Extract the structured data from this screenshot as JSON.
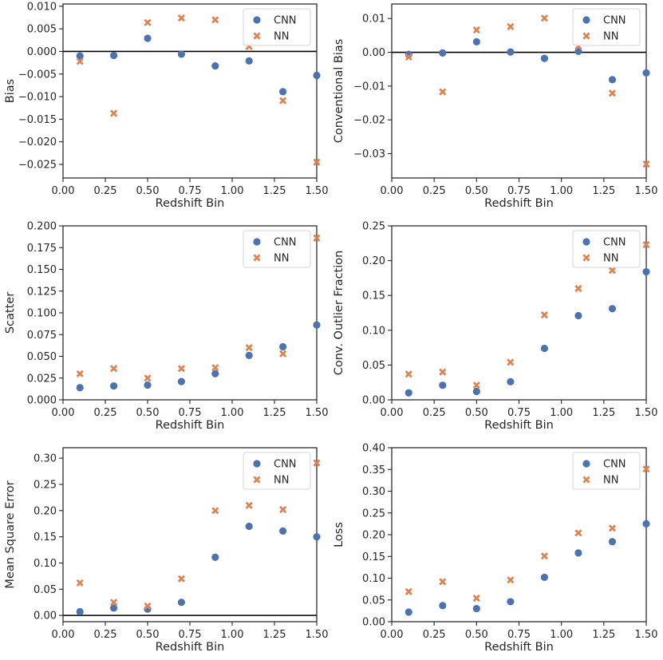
{
  "figure": {
    "x_axis_label": "Redshift Bin",
    "x_ticks": [
      "0.00",
      "0.25",
      "0.50",
      "0.75",
      "1.00",
      "1.25",
      "1.50"
    ],
    "legend": [
      "CNN",
      "NN"
    ],
    "colors": {
      "CNN": "#4c72b0",
      "NN": "#dd8452",
      "axis": "#262626",
      "zero_line": "#000000"
    },
    "markers": {
      "CNN": "circle",
      "NN": "x"
    }
  },
  "chart_data": [
    {
      "type": "scatter",
      "id": "bias",
      "title": "",
      "xlabel": "Redshift Bin",
      "ylabel": "Bias",
      "xlim": [
        0.0,
        1.5
      ],
      "ylim": [
        -0.028,
        0.0105
      ],
      "yticks": [
        -0.025,
        -0.02,
        -0.015,
        -0.01,
        -0.005,
        0.0,
        0.005,
        0.01
      ],
      "ytick_labels": [
        "−0.025",
        "−0.020",
        "−0.015",
        "−0.010",
        "−0.005",
        "0.000",
        "0.005",
        "0.010"
      ],
      "zero_line": true,
      "x": [
        0.1,
        0.3,
        0.5,
        0.7,
        0.9,
        1.1,
        1.3,
        1.5
      ],
      "series": [
        {
          "name": "CNN",
          "values": [
            -0.001,
            -0.0009,
            0.0029,
            -0.0006,
            -0.0032,
            -0.0021,
            -0.0089,
            -0.0053
          ]
        },
        {
          "name": "NN",
          "values": [
            -0.0022,
            -0.0137,
            0.0064,
            0.0074,
            0.007,
            0.0011,
            -0.0109,
            -0.0245
          ]
        }
      ]
    },
    {
      "type": "scatter",
      "id": "conventional-bias",
      "title": "",
      "xlabel": "Redshift Bin",
      "ylabel": "Conventional Bias",
      "xlim": [
        0.0,
        1.5
      ],
      "ylim": [
        -0.0372,
        0.0143
      ],
      "yticks": [
        -0.03,
        -0.02,
        -0.01,
        0.0,
        0.01
      ],
      "ytick_labels": [
        "−0.03",
        "−0.02",
        "−0.01",
        "0.00",
        "0.01"
      ],
      "zero_line": true,
      "x": [
        0.1,
        0.3,
        0.5,
        0.7,
        0.9,
        1.1,
        1.3,
        1.5
      ],
      "series": [
        {
          "name": "CNN",
          "values": [
            -0.0006,
            -0.0002,
            0.0031,
            0.0001,
            -0.0018,
            0.0003,
            -0.0081,
            -0.0061
          ]
        },
        {
          "name": "NN",
          "values": [
            -0.0014,
            -0.0117,
            0.0066,
            0.0076,
            0.0101,
            0.0018,
            -0.0121,
            -0.0331
          ]
        }
      ]
    },
    {
      "type": "scatter",
      "id": "scatter",
      "title": "",
      "xlabel": "Redshift Bin",
      "ylabel": "Scatter",
      "xlim": [
        0.0,
        1.5
      ],
      "ylim": [
        0.0,
        0.2
      ],
      "yticks": [
        0.0,
        0.025,
        0.05,
        0.075,
        0.1,
        0.125,
        0.15,
        0.175,
        0.2
      ],
      "ytick_labels": [
        "0.000",
        "0.025",
        "0.050",
        "0.075",
        "0.100",
        "0.125",
        "0.150",
        "0.175",
        "0.200"
      ],
      "zero_line": false,
      "x": [
        0.1,
        0.3,
        0.5,
        0.7,
        0.9,
        1.1,
        1.3,
        1.5
      ],
      "series": [
        {
          "name": "CNN",
          "values": [
            0.014,
            0.016,
            0.017,
            0.021,
            0.03,
            0.051,
            0.061,
            0.086
          ]
        },
        {
          "name": "NN",
          "values": [
            0.03,
            0.036,
            0.025,
            0.036,
            0.037,
            0.06,
            0.053,
            0.186
          ]
        }
      ]
    },
    {
      "type": "scatter",
      "id": "conv-outlier-fraction",
      "title": "",
      "xlabel": "Redshift Bin",
      "ylabel": "Conv. Outlier Fraction",
      "xlim": [
        0.0,
        1.5
      ],
      "ylim": [
        0.0,
        0.25
      ],
      "yticks": [
        0.0,
        0.05,
        0.1,
        0.15,
        0.2,
        0.25
      ],
      "ytick_labels": [
        "0.00",
        "0.05",
        "0.10",
        "0.15",
        "0.20",
        "0.25"
      ],
      "zero_line": false,
      "x": [
        0.1,
        0.3,
        0.5,
        0.7,
        0.9,
        1.1,
        1.3,
        1.5
      ],
      "series": [
        {
          "name": "CNN",
          "values": [
            0.01,
            0.021,
            0.012,
            0.026,
            0.074,
            0.121,
            0.131,
            0.184
          ]
        },
        {
          "name": "NN",
          "values": [
            0.037,
            0.04,
            0.021,
            0.054,
            0.122,
            0.16,
            0.186,
            0.223
          ]
        }
      ]
    },
    {
      "type": "scatter",
      "id": "mean-square-error",
      "title": "",
      "xlabel": "Redshift Bin",
      "ylabel": "Mean Square Error",
      "xlim": [
        0.0,
        1.5
      ],
      "ylim": [
        -0.012,
        0.32
      ],
      "yticks": [
        0.0,
        0.05,
        0.1,
        0.15,
        0.2,
        0.25,
        0.3
      ],
      "ytick_labels": [
        "0.00",
        "0.05",
        "0.10",
        "0.15",
        "0.20",
        "0.25",
        "0.30"
      ],
      "zero_line": true,
      "x": [
        0.1,
        0.3,
        0.5,
        0.7,
        0.9,
        1.1,
        1.3,
        1.5
      ],
      "series": [
        {
          "name": "CNN",
          "values": [
            0.007,
            0.014,
            0.012,
            0.025,
            0.111,
            0.17,
            0.161,
            0.15
          ]
        },
        {
          "name": "NN",
          "values": [
            0.062,
            0.025,
            0.018,
            0.07,
            0.2,
            0.21,
            0.202,
            0.291
          ]
        }
      ]
    },
    {
      "type": "scatter",
      "id": "loss",
      "title": "",
      "xlabel": "Redshift Bin",
      "ylabel": "Loss",
      "xlim": [
        0.0,
        1.5
      ],
      "ylim": [
        0.0,
        0.4
      ],
      "yticks": [
        0.0,
        0.05,
        0.1,
        0.15,
        0.2,
        0.25,
        0.3,
        0.35,
        0.4
      ],
      "ytick_labels": [
        "0.00",
        "0.05",
        "0.10",
        "0.15",
        "0.20",
        "0.25",
        "0.30",
        "0.35",
        "0.40"
      ],
      "zero_line": false,
      "x": [
        0.1,
        0.3,
        0.5,
        0.7,
        0.9,
        1.1,
        1.3,
        1.5
      ],
      "series": [
        {
          "name": "CNN",
          "values": [
            0.022,
            0.037,
            0.03,
            0.046,
            0.102,
            0.158,
            0.184,
            0.225
          ]
        },
        {
          "name": "NN",
          "values": [
            0.069,
            0.092,
            0.054,
            0.096,
            0.151,
            0.204,
            0.215,
            0.351
          ]
        }
      ]
    }
  ]
}
